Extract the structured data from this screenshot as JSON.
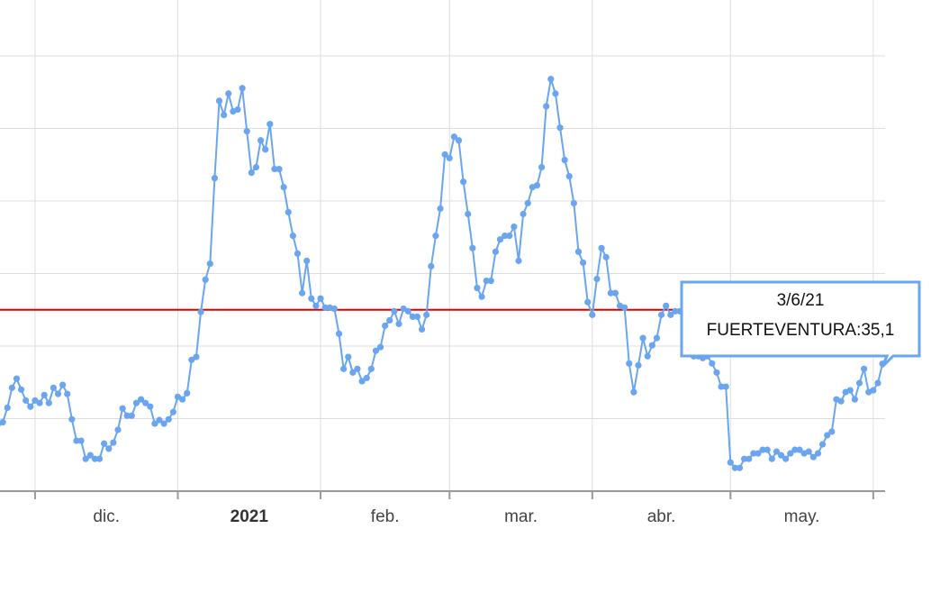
{
  "chart_data": {
    "type": "line",
    "x_labels": [
      "dic.",
      "2021",
      "feb.",
      "mar.",
      "abr.",
      "may."
    ],
    "series": [
      {
        "name": "FUERTEVENTURA",
        "color": "#6aa5f0",
        "values": [
          18.6,
          19.0,
          23.0,
          28.5,
          31.0,
          28.0,
          25.0,
          23.3,
          25.0,
          24.3,
          26.5,
          24.3,
          28.5,
          26.8,
          29.3,
          26.8,
          19.8,
          13.9,
          13.9,
          8.9,
          9.9,
          8.9,
          8.9,
          13.1,
          11.7,
          13.4,
          16.9,
          22.8,
          20.8,
          20.8,
          24.3,
          25.3,
          24.3,
          23.3,
          18.6,
          19.6,
          18.6,
          19.8,
          21.8,
          26.0,
          25.3,
          27.0,
          36.2,
          37.0,
          49.4,
          58.3,
          62.7,
          86.3,
          107.6,
          103.7,
          109.6,
          104.7,
          105.2,
          111.1,
          99.2,
          87.8,
          89.3,
          96.7,
          94.2,
          101.2,
          88.8,
          88.8,
          83.8,
          76.9,
          70.4,
          65.5,
          54.6,
          63.5,
          53.1,
          51.1,
          53.1,
          50.6,
          50.6,
          50.3,
          43.4,
          33.7,
          37.0,
          32.7,
          33.7,
          30.3,
          31.2,
          33.7,
          38.7,
          39.7,
          45.6,
          47.1,
          49.6,
          46.1,
          50.3,
          49.6,
          48.1,
          48.1,
          44.6,
          48.6,
          62.0,
          70.4,
          77.9,
          92.8,
          91.8,
          97.7,
          96.7,
          85.3,
          76.4,
          67.0,
          56.0,
          53.6,
          58.0,
          58.0,
          66.0,
          69.4,
          70.4,
          70.4,
          72.9,
          63.5,
          76.4,
          79.4,
          83.8,
          84.3,
          89.3,
          106.1,
          113.6,
          109.6,
          100.2,
          91.3,
          86.8,
          79.4,
          66.0,
          63.0,
          52.1,
          48.6,
          58.5,
          67.0,
          64.5,
          54.6,
          54.6,
          51.1,
          50.6,
          35.2,
          27.3,
          34.7,
          42.2,
          37.2,
          40.2,
          42.2,
          48.6,
          51.1,
          48.6,
          49.6,
          49.6,
          47.6,
          44.6,
          37.2,
          37.2,
          36.7,
          37.2,
          35.2,
          32.7,
          28.8,
          28.8,
          7.9,
          6.4,
          6.4,
          8.9,
          8.9,
          10.4,
          10.4,
          11.4,
          11.4,
          8.9,
          10.9,
          9.9,
          8.9,
          10.4,
          11.4,
          11.4,
          10.4,
          10.9,
          9.4,
          10.4,
          12.9,
          15.4,
          16.4,
          25.3,
          24.8,
          27.3,
          27.8,
          25.3,
          29.8,
          33.7,
          27.3,
          27.8,
          29.8,
          35.1
        ]
      }
    ],
    "ylim": [
      0,
      120
    ],
    "yticks": [
      0,
      20,
      40,
      60,
      80,
      100,
      120
    ],
    "grid": true,
    "threshold": {
      "value": 50,
      "color": "#e00000"
    },
    "tooltip": {
      "title": "3/6/21",
      "text": "FUERTEVENTURA:35,1"
    }
  }
}
